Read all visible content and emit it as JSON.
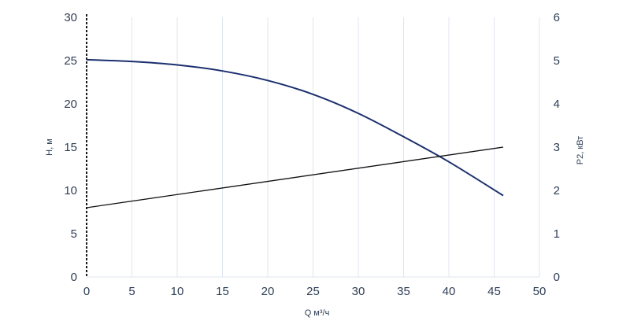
{
  "chart_data": {
    "type": "line",
    "xlabel": "Q м³/ч",
    "ylabel": "H, м",
    "y2label": "P2, кВт",
    "xlim": [
      0,
      50
    ],
    "ylim": [
      0,
      30
    ],
    "y2lim": [
      0,
      6
    ],
    "x_ticks": [
      0,
      5,
      10,
      15,
      20,
      25,
      30,
      35,
      40,
      45,
      50
    ],
    "y_ticks": [
      0,
      5,
      10,
      15,
      20,
      25,
      30
    ],
    "y2_ticks": [
      0,
      1,
      2,
      3,
      4,
      5,
      6
    ],
    "grid": true,
    "series": [
      {
        "axis": "left",
        "color": "#1b2f6e",
        "x": [
          0,
          5,
          10,
          15,
          20,
          25,
          30,
          35,
          40,
          46
        ],
        "y": [
          25.1,
          24.9,
          24.5,
          23.8,
          22.7,
          21.1,
          18.9,
          16.2,
          13.3,
          9.4
        ]
      },
      {
        "axis": "right",
        "color": "#111111",
        "x": [
          0,
          46
        ],
        "y": [
          1.6,
          3.0
        ]
      }
    ]
  }
}
